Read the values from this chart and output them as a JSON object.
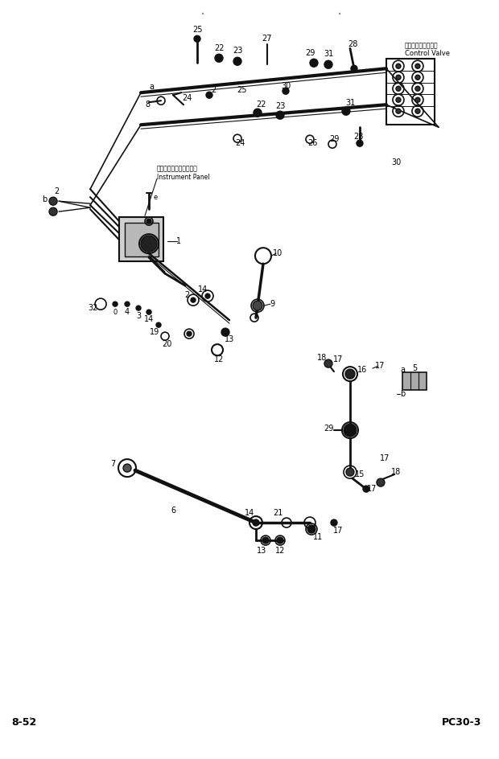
{
  "bg_color": "#ffffff",
  "fig_width": 6.2,
  "fig_height": 9.44,
  "dpi": 100,
  "bottom_left_text": "8-52",
  "bottom_right_text": "PC30-3",
  "cv_jp": "コントロールバルブ",
  "cv_en": "Control Valve",
  "ip_jp": "インストルメントパネル",
  "ip_en": "Instrument Panel",
  "lc": "#111111",
  "tc": "#000000"
}
